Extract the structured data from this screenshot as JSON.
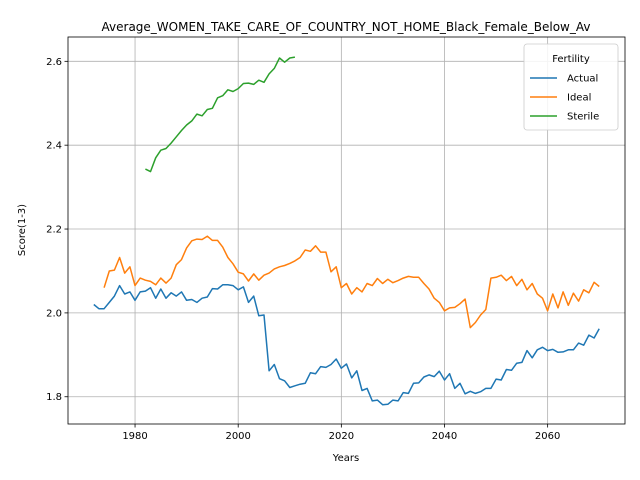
{
  "chart_data": {
    "type": "line",
    "title": "Average_WOMEN_TAKE_CARE_OF_COUNTRY_NOT_HOME_Black_Female_Below_Av",
    "xlabel": "Years",
    "ylabel": "Score(1-3)",
    "xlim": [
      1967,
      2075
    ],
    "ylim": [
      1.735,
      2.658
    ],
    "xticks": [
      1980,
      2000,
      2020,
      2040,
      2060
    ],
    "yticks": [
      1.8,
      2.0,
      2.2,
      2.4,
      2.6
    ],
    "xtick_labels": [
      "1980",
      "2000",
      "2020",
      "2040",
      "2060"
    ],
    "ytick_labels": [
      "1.8",
      "2.0",
      "2.2",
      "2.4",
      "2.6"
    ],
    "grid": true,
    "legend": {
      "title": "Fertility",
      "placement": "top-right"
    },
    "series": [
      {
        "name": "Actual",
        "color": "#1f77b4",
        "x": [
          1972,
          1973,
          1974,
          1975,
          1976,
          1977,
          1978,
          1979,
          1980,
          1981,
          1982,
          1983,
          1984,
          1985,
          1986,
          1987,
          1988,
          1989,
          1990,
          1991,
          1992,
          1993,
          1994,
          1995,
          1996,
          1997,
          1998,
          1999,
          2000,
          2001,
          2002,
          2003,
          2004,
          2005,
          2006,
          2007,
          2008,
          2009,
          2010,
          2011,
          2012,
          2013,
          2014,
          2015,
          2016,
          2017,
          2018,
          2019,
          2020,
          2021,
          2022,
          2023,
          2024,
          2025,
          2026,
          2027,
          2028,
          2029,
          2030,
          2031,
          2032,
          2033,
          2034,
          2035,
          2036,
          2037,
          2038,
          2039,
          2040,
          2041,
          2042,
          2043,
          2044,
          2045,
          2046,
          2047,
          2048,
          2049,
          2050,
          2051,
          2052,
          2053,
          2054,
          2055,
          2056,
          2057,
          2058,
          2059,
          2060,
          2061,
          2062,
          2063,
          2064,
          2065,
          2066,
          2067,
          2068,
          2069,
          2070
        ],
        "values": [
          2.02,
          2.01,
          2.01,
          2.025,
          2.04,
          2.065,
          2.045,
          2.05,
          2.03,
          2.05,
          2.052,
          2.06,
          2.035,
          2.057,
          2.035,
          2.048,
          2.04,
          2.05,
          2.03,
          2.032,
          2.025,
          2.035,
          2.038,
          2.058,
          2.057,
          2.067,
          2.067,
          2.065,
          2.055,
          2.062,
          2.025,
          2.04,
          1.993,
          1.995,
          1.862,
          1.877,
          1.843,
          1.838,
          1.822,
          1.826,
          1.83,
          1.832,
          1.857,
          1.855,
          1.872,
          1.87,
          1.877,
          1.89,
          1.868,
          1.878,
          1.845,
          1.862,
          1.815,
          1.82,
          1.79,
          1.792,
          1.781,
          1.782,
          1.792,
          1.79,
          1.81,
          1.808,
          1.832,
          1.833,
          1.847,
          1.852,
          1.848,
          1.861,
          1.84,
          1.855,
          1.82,
          1.832,
          1.807,
          1.813,
          1.808,
          1.812,
          1.82,
          1.82,
          1.842,
          1.84,
          1.865,
          1.863,
          1.88,
          1.882,
          1.91,
          1.893,
          1.912,
          1.918,
          1.91,
          1.913,
          1.906,
          1.907,
          1.912,
          1.912,
          1.928,
          1.923,
          1.947,
          1.94,
          1.962
        ]
      },
      {
        "name": "Ideal",
        "color": "#ff7f0e",
        "x": [
          1974,
          1975,
          1976,
          1977,
          1978,
          1979,
          1980,
          1981,
          1982,
          1983,
          1984,
          1985,
          1986,
          1987,
          1988,
          1989,
          1990,
          1991,
          1992,
          1993,
          1994,
          1995,
          1996,
          1997,
          1998,
          1999,
          2000,
          2001,
          2002,
          2003,
          2004,
          2005,
          2006,
          2007,
          2008,
          2009,
          2010,
          2011,
          2012,
          2013,
          2014,
          2015,
          2016,
          2017,
          2018,
          2019,
          2020,
          2021,
          2022,
          2023,
          2024,
          2025,
          2026,
          2027,
          2028,
          2029,
          2030,
          2031,
          2032,
          2033,
          2034,
          2035,
          2036,
          2037,
          2038,
          2039,
          2040,
          2041,
          2042,
          2043,
          2044,
          2045,
          2046,
          2047,
          2048,
          2049,
          2050,
          2051,
          2052,
          2053,
          2054,
          2055,
          2056,
          2057,
          2058,
          2059,
          2060,
          2061,
          2062,
          2063,
          2064,
          2065,
          2066,
          2067,
          2068,
          2069,
          2070
        ],
        "values": [
          2.06,
          2.1,
          2.102,
          2.132,
          2.095,
          2.11,
          2.065,
          2.083,
          2.078,
          2.075,
          2.067,
          2.083,
          2.071,
          2.083,
          2.115,
          2.127,
          2.155,
          2.172,
          2.176,
          2.175,
          2.183,
          2.173,
          2.173,
          2.157,
          2.132,
          2.117,
          2.097,
          2.093,
          2.076,
          2.093,
          2.078,
          2.09,
          2.095,
          2.105,
          2.11,
          2.113,
          2.118,
          2.124,
          2.132,
          2.15,
          2.147,
          2.16,
          2.145,
          2.145,
          2.098,
          2.11,
          2.06,
          2.07,
          2.045,
          2.06,
          2.05,
          2.07,
          2.065,
          2.082,
          2.07,
          2.08,
          2.072,
          2.077,
          2.083,
          2.087,
          2.085,
          2.085,
          2.07,
          2.057,
          2.035,
          2.025,
          2.005,
          2.012,
          2.013,
          2.022,
          2.033,
          1.965,
          1.977,
          1.995,
          2.008,
          2.083,
          2.085,
          2.09,
          2.077,
          2.087,
          2.065,
          2.08,
          2.055,
          2.07,
          2.045,
          2.035,
          2.005,
          2.045,
          2.012,
          2.05,
          2.018,
          2.047,
          2.028,
          2.055,
          2.048,
          2.073,
          2.063
        ]
      },
      {
        "name": "Sterile",
        "color": "#2ca02c",
        "x": [
          1982,
          1983,
          1984,
          1985,
          1986,
          1987,
          1988,
          1989,
          1990,
          1991,
          1992,
          1993,
          1994,
          1995,
          1996,
          1997,
          1998,
          1999,
          2000,
          2001,
          2002,
          2003,
          2004,
          2005,
          2006,
          2007,
          2008,
          2009,
          2010,
          2011
        ],
        "values": [
          2.343,
          2.337,
          2.37,
          2.388,
          2.392,
          2.405,
          2.42,
          2.435,
          2.448,
          2.458,
          2.474,
          2.47,
          2.485,
          2.488,
          2.513,
          2.518,
          2.532,
          2.528,
          2.535,
          2.547,
          2.548,
          2.545,
          2.555,
          2.55,
          2.57,
          2.583,
          2.608,
          2.598,
          2.608,
          2.61
        ]
      }
    ]
  }
}
